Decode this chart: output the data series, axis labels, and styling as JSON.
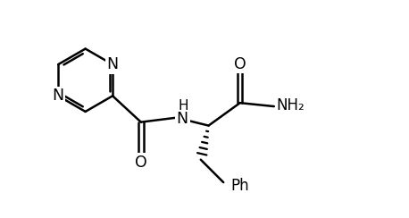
{
  "background_color": "#ffffff",
  "line_color": "#000000",
  "line_width": 1.8,
  "font_size": 11.5,
  "fig_width": 4.58,
  "fig_height": 2.44,
  "dpi": 100,
  "xlim": [
    0,
    9.16
  ],
  "ylim": [
    0,
    4.88
  ]
}
